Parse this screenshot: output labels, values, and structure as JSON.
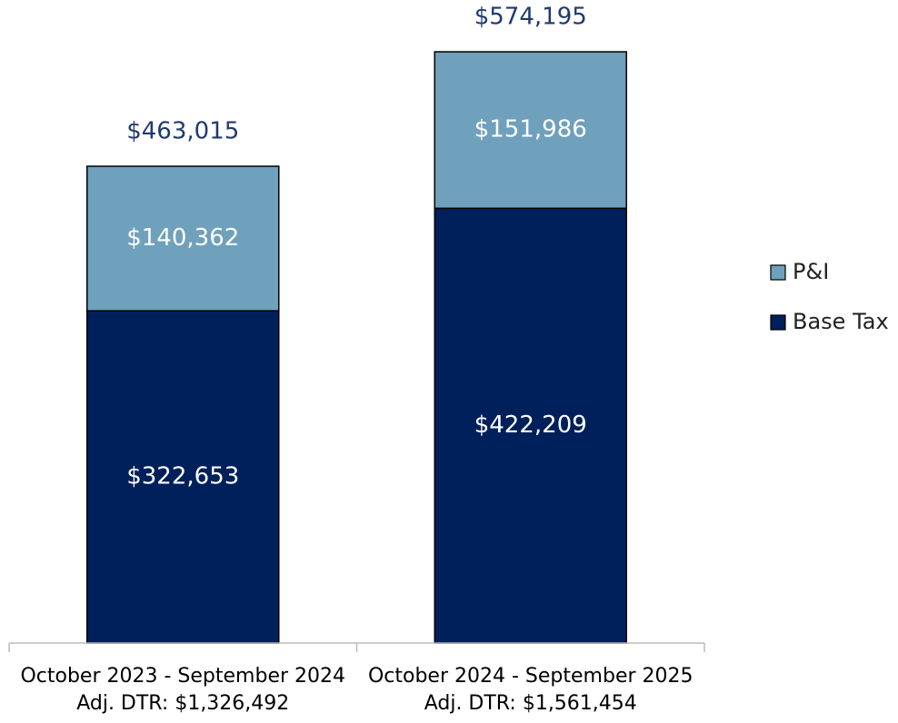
{
  "chart_data": {
    "type": "stacked_bar",
    "categories": [
      [
        "October 2023 - September 2024",
        "Adj. DTR: $1,326,492"
      ],
      [
        "October 2024 - September 2025",
        "Adj. DTR: $1,561,454"
      ]
    ],
    "series": [
      {
        "name": "Base Tax",
        "color": "#00205b",
        "values": [
          322653,
          422209
        ],
        "value_labels": [
          "$322,653",
          "$422,209"
        ]
      },
      {
        "name": "P&I",
        "color": "#6fa0bc",
        "values": [
          140362,
          151986
        ],
        "value_labels": [
          "$140,362",
          "$151,986"
        ]
      }
    ],
    "totals": [
      463015,
      574195
    ],
    "total_labels": [
      "$463,015",
      "$574,195"
    ],
    "legend": "right"
  }
}
